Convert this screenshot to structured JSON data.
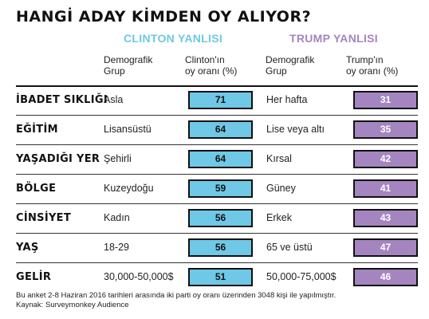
{
  "title": "HANGİ ADAY KİMDEN OY ALIYOR?",
  "groups": {
    "clinton": "CLINTON YANLISI",
    "trump": "TRUMP YANLISI"
  },
  "columns": {
    "clinton_group": "Demografik\nGrup",
    "clinton_share": "Clinton'ın\noy oranı (%)",
    "trump_group": "Demografik\nGrup",
    "trump_share": "Trump'ın\noy oranı (%)"
  },
  "colors": {
    "clinton": "#6ec8e6",
    "trump": "#a485c0"
  },
  "chart_data": {
    "type": "table",
    "categories": [
      "İBADET SIKLIĞI",
      "EĞİTİM",
      "YAŞADIĞI YER",
      "BÖLGE",
      "CİNSİYET",
      "YAŞ",
      "GELİR"
    ],
    "clinton_groups": [
      "Asla",
      "Lisansüstü",
      "Şehirli",
      "Kuzeydoğu",
      "Kadın",
      "18-29",
      "30,000-50,000$"
    ],
    "clinton_values": [
      71,
      64,
      64,
      59,
      56,
      56,
      51
    ],
    "trump_groups": [
      "Her hafta",
      "Lise veya altı",
      "Kırsal",
      "Güney",
      "Erkek",
      "65 ve üstü",
      "50,000-75,000$"
    ],
    "trump_values": [
      31,
      35,
      42,
      41,
      43,
      47,
      46
    ]
  },
  "footnote": "Bu anket 2-8 Haziran 2016 tarihleri arasında iki parti oy oranı üzerinden 3048 kişi ile yapılmıştır.",
  "source": "Kaynak: Surveymonkey Audience"
}
